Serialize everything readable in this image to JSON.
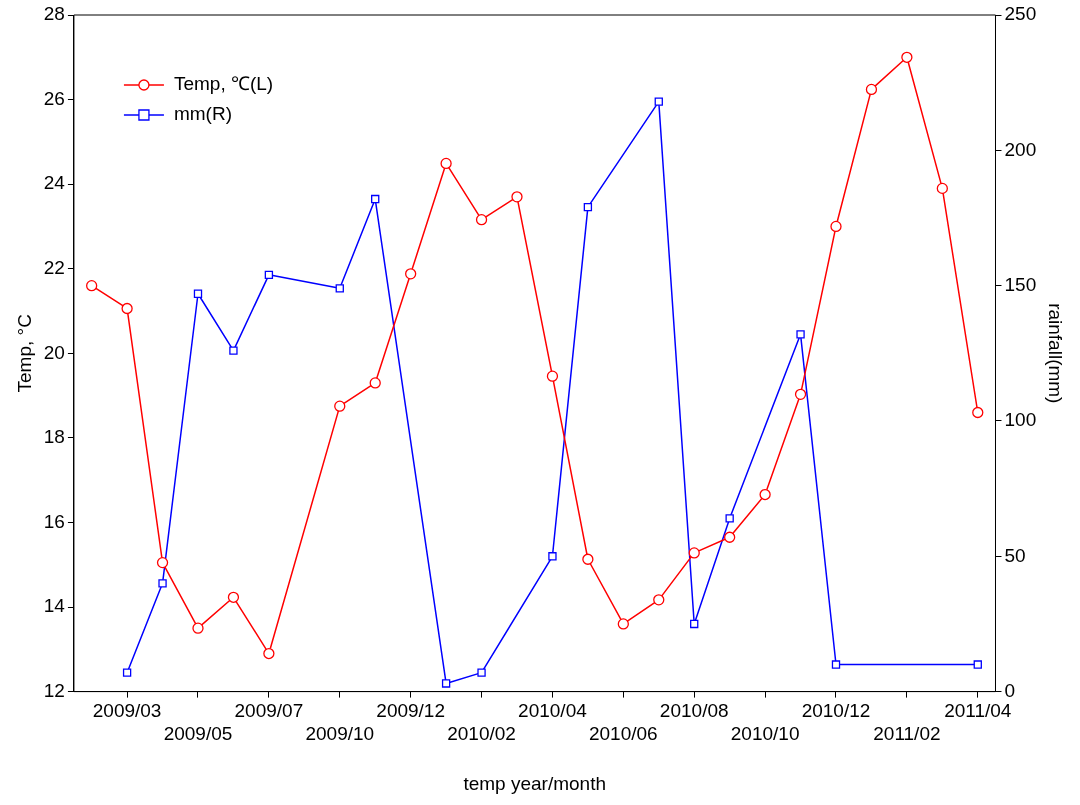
{
  "chart_data": {
    "type": "line",
    "xlabel": "temp year/month",
    "ylabel": "Temp, °C",
    "y2label": "rainfall(mm)",
    "categories": [
      null,
      "2009/03",
      null,
      "2009/05",
      null,
      "2009/07",
      null,
      "2009/10",
      null,
      "2009/12",
      null,
      "2010/02",
      null,
      "2010/04",
      null,
      "2010/06",
      null,
      "2010/08",
      null,
      "2010/10",
      null,
      "2010/12",
      null,
      "2011/02",
      null,
      "2011/04"
    ],
    "ylim": [
      12,
      28
    ],
    "yticks": [
      12,
      14,
      16,
      18,
      20,
      22,
      24,
      26,
      28
    ],
    "y2lim": [
      0,
      250
    ],
    "y2ticks": [
      0,
      50,
      100,
      150,
      200,
      250
    ],
    "grid": false,
    "legend": "top left",
    "marker": "circle",
    "line_style": "solid",
    "series": [
      {
        "name": "Temp, ℃(L)",
        "color": "#ff0000",
        "values": [
          21.6,
          21.06,
          15.05,
          13.5,
          14.23,
          12.9,
          null,
          18.75,
          19.3,
          21.88,
          24.49,
          23.16,
          23.7,
          19.46,
          15.13,
          13.6,
          14.17,
          15.28,
          15.65,
          16.66,
          19.03,
          23.0,
          26.24,
          27.0,
          23.9,
          18.6
        ]
      },
      {
        "name": "mm(R)",
        "color": "#0000ff",
        "marker": "square",
        "axis": "y2",
        "values": [
          null,
          7,
          40,
          147,
          126,
          154,
          null,
          149,
          182,
          null,
          3,
          7,
          null,
          50,
          179,
          null,
          218,
          25,
          64,
          null,
          132,
          10,
          null,
          null,
          null,
          10
        ]
      }
    ]
  }
}
